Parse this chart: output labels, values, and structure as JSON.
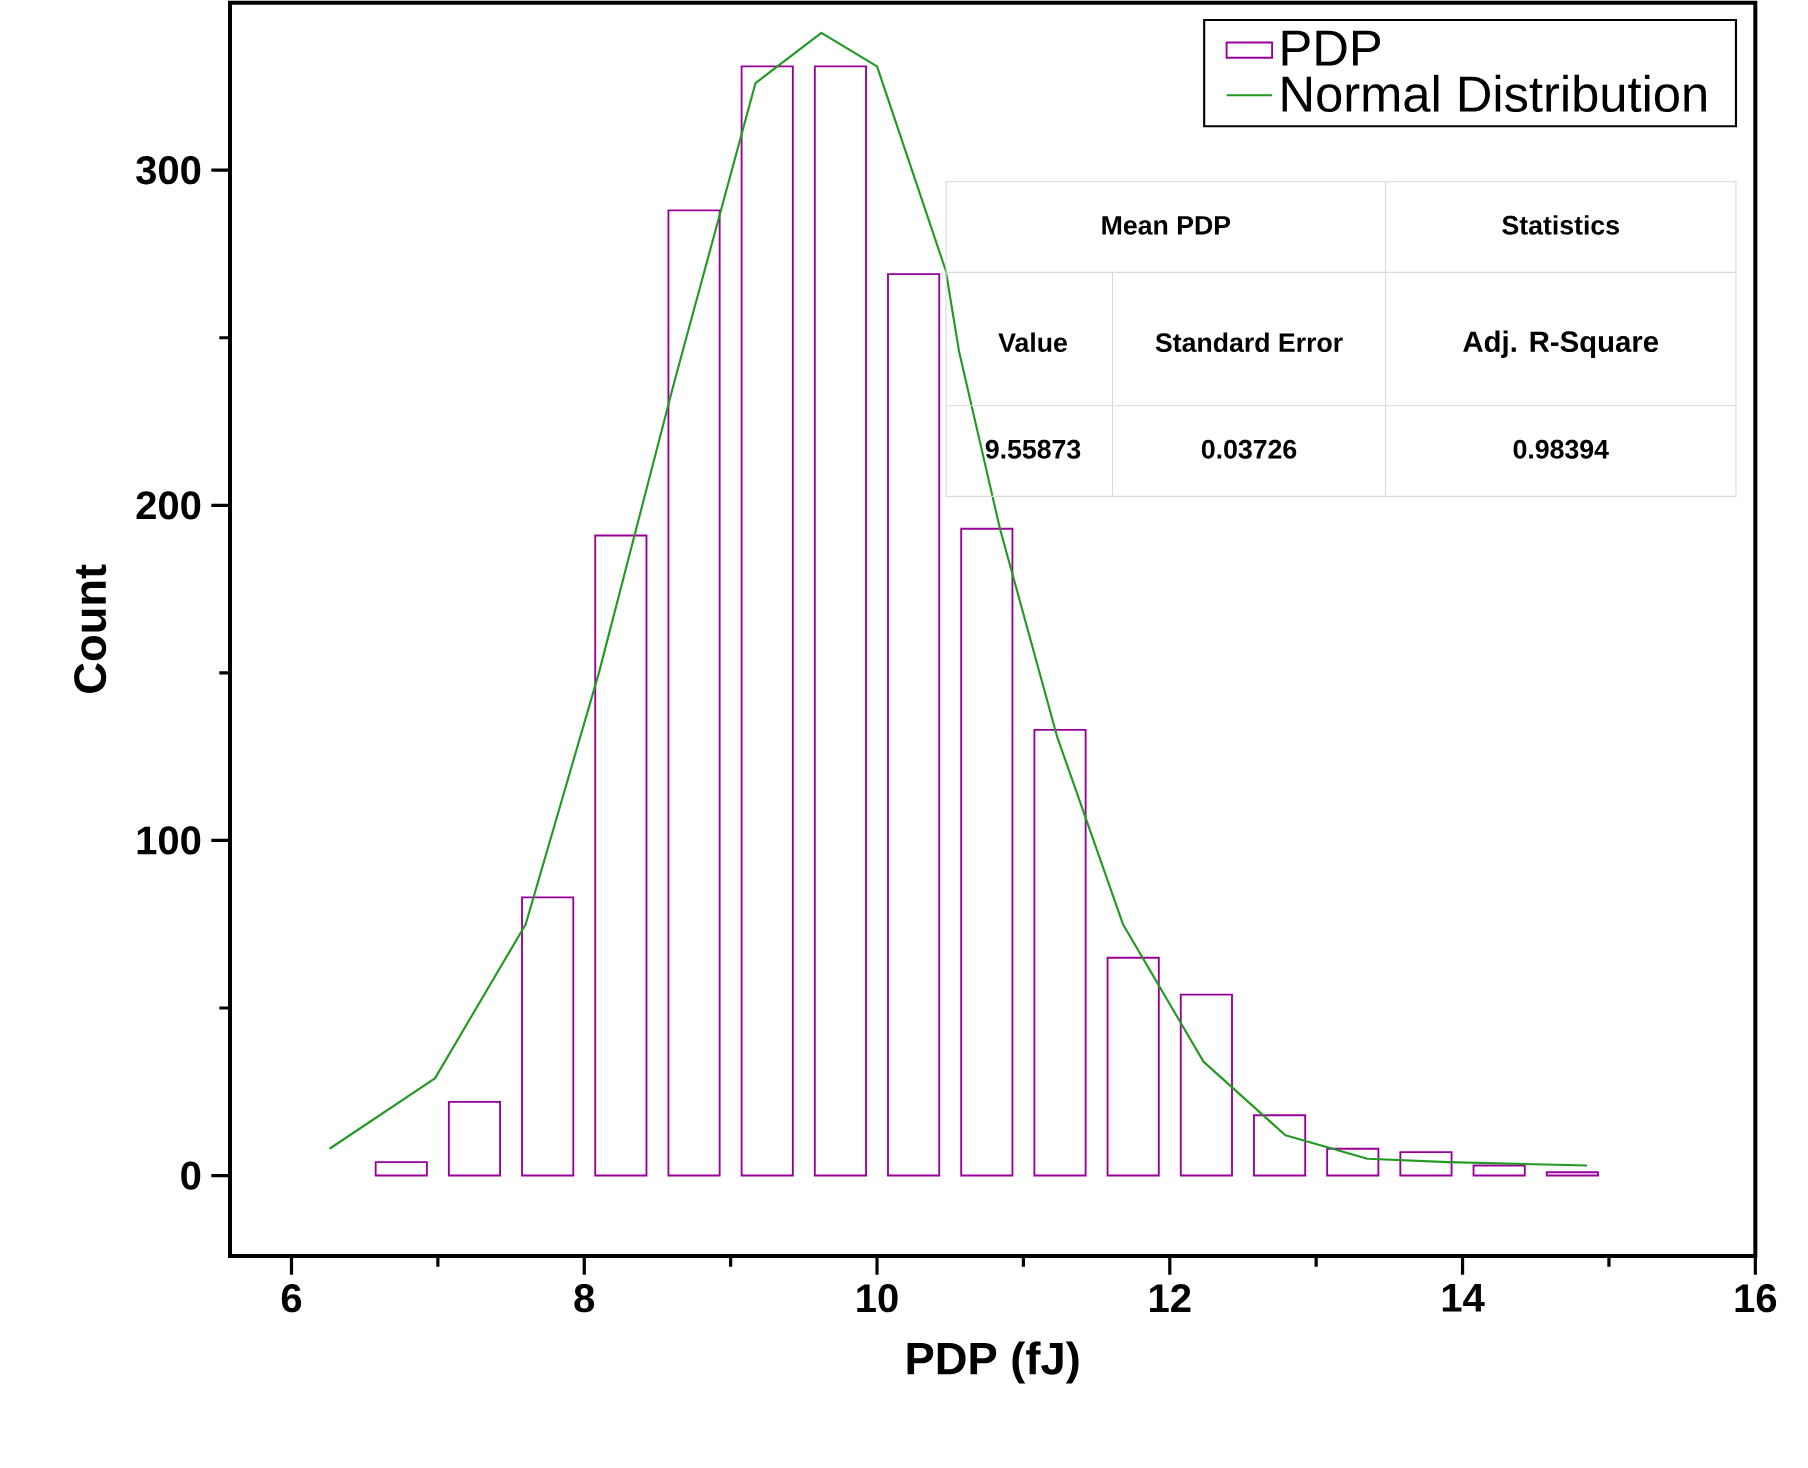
{
  "chart_data": {
    "type": "bar",
    "xlabel": "PDP (fJ)",
    "ylabel": "Count",
    "series": [
      {
        "name": "PDP",
        "color": "#990099",
        "x": [
          6.25,
          6.75,
          7.25,
          7.75,
          8.25,
          8.75,
          9.25,
          9.75,
          10.25,
          10.75,
          11.25,
          11.75,
          12.25,
          12.75,
          13.25,
          13.75,
          14.25,
          14.75
        ],
        "values": [
          0,
          4,
          22,
          83,
          191,
          288,
          331,
          331,
          269,
          193,
          133,
          65,
          54,
          18,
          8,
          7,
          3,
          1
        ]
      },
      {
        "name": "Normal Distribution",
        "type": "line",
        "color": "#229922",
        "x": [
          6.26,
          6.98,
          7.6,
          8.1,
          8.61,
          9.17,
          9.62,
          10.0,
          10.47,
          10.56,
          10.84,
          11.23,
          11.68,
          12.23,
          12.79,
          13.35,
          13.9,
          14.85
        ],
        "values": [
          8,
          29,
          75,
          150,
          236,
          326,
          341,
          331,
          270,
          246,
          193,
          131,
          75,
          34,
          12,
          5,
          4,
          3
        ]
      }
    ],
    "xlim": [
      5.58,
      16
    ],
    "ylim": [
      -24,
      350
    ],
    "xticks": [
      6,
      8,
      10,
      12,
      14,
      16
    ],
    "yticks": [
      0,
      100,
      200,
      300
    ],
    "legend": "top right",
    "marker": "none",
    "line_style": "solid",
    "annotations": [
      "Mean PDP",
      "Statistics",
      "Value",
      "Standard Error",
      "Adj. R-Square",
      "9.55873",
      "0.03726",
      "0.98394"
    ]
  }
}
